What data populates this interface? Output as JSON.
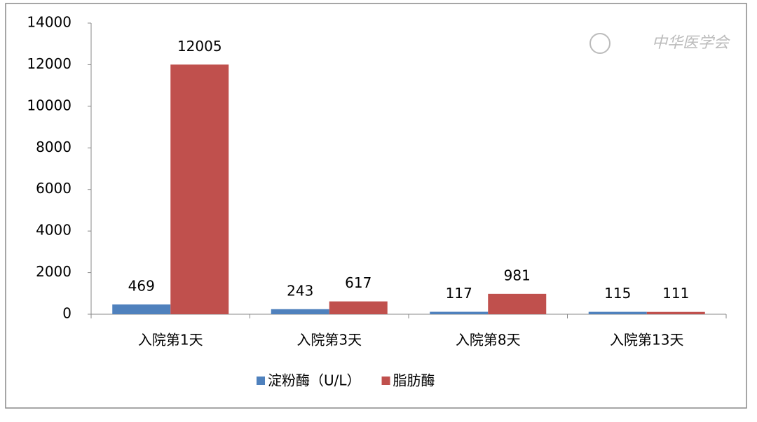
{
  "chart_data": {
    "type": "bar",
    "watermark": "中华医学会",
    "categories": [
      "入院第1天",
      "入院第3天",
      "入院第8天",
      "入院第13天"
    ],
    "series": [
      {
        "name": "淀粉酶（U/L）",
        "color": "#4f81bd",
        "values": [
          469,
          243,
          117,
          115
        ]
      },
      {
        "name": "脂肪酶",
        "color": "#c0504d",
        "values": [
          12005,
          617,
          981,
          111
        ]
      }
    ],
    "ylim": [
      0,
      14000
    ],
    "yticks": [
      0,
      2000,
      4000,
      6000,
      8000,
      10000,
      12000,
      14000
    ],
    "grid": false,
    "legend": "bottom"
  }
}
